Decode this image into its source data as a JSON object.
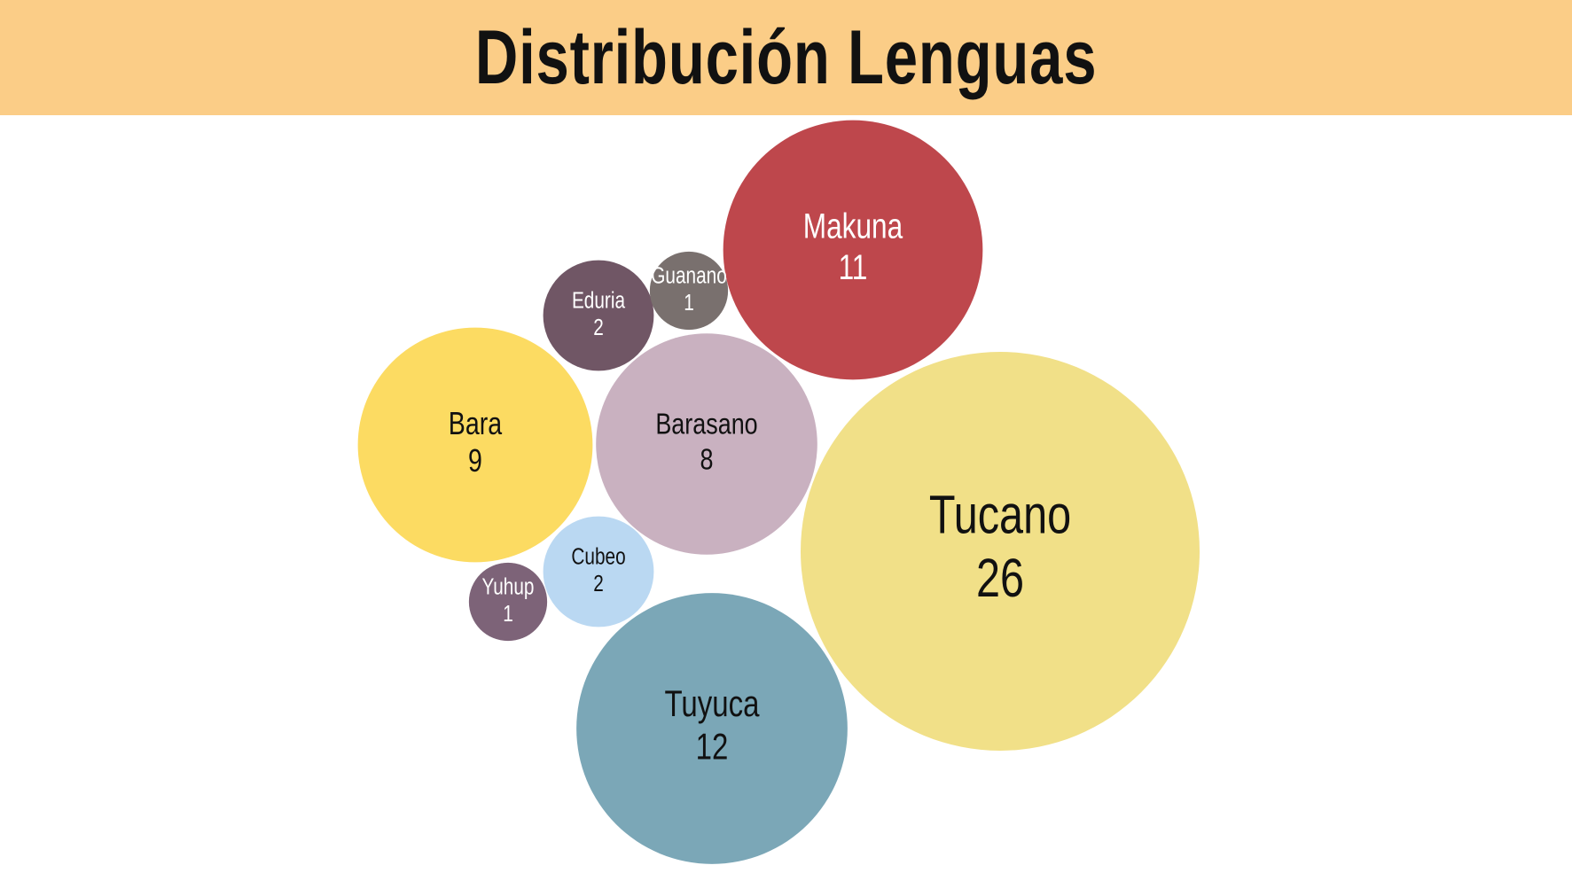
{
  "header": {
    "title": "Distribución Lenguas"
  },
  "chart_data": {
    "type": "bubble",
    "title": "Distribución Lenguas",
    "items": [
      {
        "name": "Tucano",
        "value": 26,
        "color": "#F1E088",
        "text_color": "#111111"
      },
      {
        "name": "Tuyuca",
        "value": 12,
        "color": "#7BA7B7",
        "text_color": "#111111"
      },
      {
        "name": "Makuna",
        "value": 11,
        "color": "#BE474C",
        "text_color": "#FFFFFF"
      },
      {
        "name": "Bara",
        "value": 9,
        "color": "#FCDB62",
        "text_color": "#111111"
      },
      {
        "name": "Barasano",
        "value": 8,
        "color": "#C9B1C0",
        "text_color": "#111111"
      },
      {
        "name": "Eduria",
        "value": 2,
        "color": "#705665",
        "text_color": "#FFFFFF"
      },
      {
        "name": "Cubeo",
        "value": 2,
        "color": "#BAD8F2",
        "text_color": "#111111"
      },
      {
        "name": "Guanano",
        "value": 1,
        "color": "#79706E",
        "text_color": "#FFFFFF"
      },
      {
        "name": "Yuhup",
        "value": 1,
        "color": "#7D6378",
        "text_color": "#FFFFFF"
      }
    ]
  }
}
